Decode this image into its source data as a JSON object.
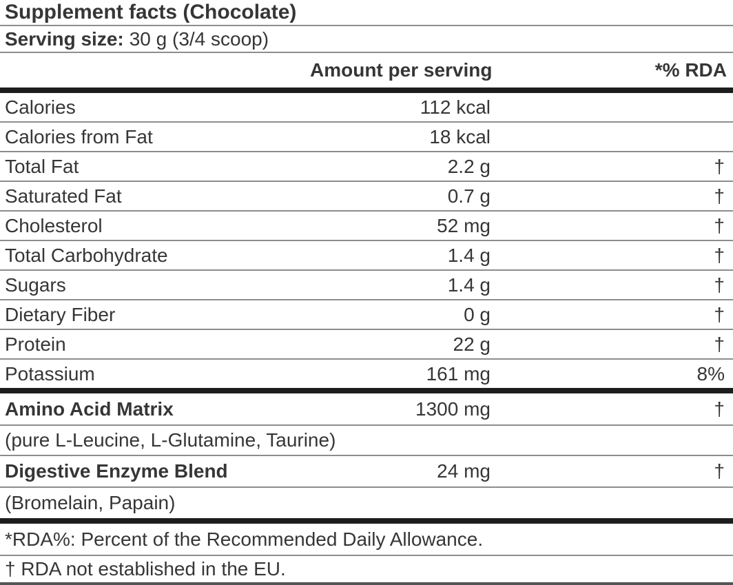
{
  "title": "Supplement facts (Chocolate)",
  "serving": {
    "label": "Serving size:",
    "value": "30 g (3/4 scoop)"
  },
  "columns": {
    "amount": "Amount per serving",
    "rda": "*% RDA"
  },
  "nutrients": [
    {
      "name": "Calories",
      "amount": "112 kcal",
      "rda": ""
    },
    {
      "name": "Calories from Fat",
      "amount": "18 kcal",
      "rda": ""
    },
    {
      "name": "Total Fat",
      "amount": "2.2 g",
      "rda": "†"
    },
    {
      "name": "Saturated Fat",
      "amount": "0.7 g",
      "rda": "†"
    },
    {
      "name": "Cholesterol",
      "amount": "52 mg",
      "rda": "†"
    },
    {
      "name": "Total Carbohydrate",
      "amount": "1.4 g",
      "rda": "†"
    },
    {
      "name": "Sugars",
      "amount": "1.4 g",
      "rda": "†"
    },
    {
      "name": "Dietary Fiber",
      "amount": "0 g",
      "rda": "†"
    },
    {
      "name": "Protein",
      "amount": "22 g",
      "rda": "†"
    },
    {
      "name": "Potassium",
      "amount": "161 mg",
      "rda": "8%"
    }
  ],
  "blends": [
    {
      "name": "Amino Acid Matrix",
      "amount": "1300 mg",
      "rda": "†",
      "ingredients": "(pure L-Leucine, L-Glutamine, Taurine)"
    },
    {
      "name": "Digestive Enzyme Blend",
      "amount": "24 mg",
      "rda": "†",
      "ingredients": "(Bromelain, Papain)"
    }
  ],
  "footnotes": [
    "*RDA%: Percent of the Recommended Daily Allowance.",
    "† RDA not established in the EU."
  ],
  "colors": {
    "text": "#363636",
    "thin_line": "#8c8c8c",
    "thick_bar": "#1d1d1d",
    "background": "#ffffff"
  }
}
